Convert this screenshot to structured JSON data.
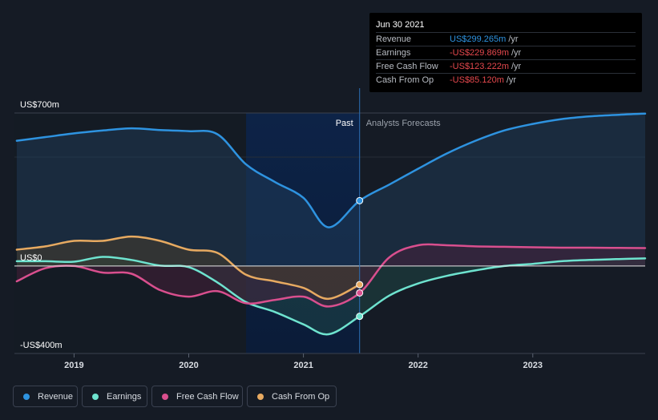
{
  "chart_data": {
    "type": "area",
    "y_ticks": [
      {
        "value": 700,
        "label": "US$700m"
      },
      {
        "value": 0,
        "label": "US$0"
      },
      {
        "value": -400,
        "label": "-US$400m"
      }
    ],
    "ylim": [
      -400,
      700
    ],
    "xlim": [
      2018.48,
      2023.98
    ],
    "x_ticks": [
      {
        "value": 2019,
        "label": "2019"
      },
      {
        "value": 2020,
        "label": "2020"
      },
      {
        "value": 2021,
        "label": "2021"
      },
      {
        "value": 2022,
        "label": "2022"
      },
      {
        "value": 2023,
        "label": "2023"
      }
    ],
    "past_label": "Past",
    "forecast_label": "Analysts Forecasts",
    "highlight_start": 2020.5,
    "divider_x": 2021.49,
    "series": [
      {
        "name": "Revenue",
        "color": "#2e93e0",
        "points": [
          [
            2018.5,
            573
          ],
          [
            2018.75,
            590
          ],
          [
            2019.0,
            607
          ],
          [
            2019.25,
            620
          ],
          [
            2019.5,
            630
          ],
          [
            2019.75,
            622
          ],
          [
            2020.0,
            617
          ],
          [
            2020.25,
            603
          ],
          [
            2020.5,
            465
          ],
          [
            2020.75,
            385
          ],
          [
            2021.0,
            312
          ],
          [
            2021.22,
            177
          ],
          [
            2021.49,
            299
          ],
          [
            2021.75,
            373
          ],
          [
            2022.0,
            445
          ],
          [
            2022.25,
            515
          ],
          [
            2022.5,
            573
          ],
          [
            2022.75,
            620
          ],
          [
            2023.0,
            650
          ],
          [
            2023.25,
            672
          ],
          [
            2023.5,
            685
          ],
          [
            2023.75,
            692
          ],
          [
            2023.98,
            697
          ]
        ]
      },
      {
        "name": "Earnings",
        "color": "#6ee3cf",
        "points": [
          [
            2018.5,
            22
          ],
          [
            2018.75,
            22
          ],
          [
            2019.0,
            20
          ],
          [
            2019.25,
            42
          ],
          [
            2019.5,
            28
          ],
          [
            2019.75,
            2
          ],
          [
            2020.0,
            -5
          ],
          [
            2020.25,
            -75
          ],
          [
            2020.5,
            -165
          ],
          [
            2020.75,
            -210
          ],
          [
            2021.0,
            -267
          ],
          [
            2021.22,
            -312
          ],
          [
            2021.49,
            -230
          ],
          [
            2021.75,
            -135
          ],
          [
            2022.0,
            -80
          ],
          [
            2022.25,
            -45
          ],
          [
            2022.5,
            -20
          ],
          [
            2022.75,
            0
          ],
          [
            2023.0,
            10
          ],
          [
            2023.25,
            22
          ],
          [
            2023.5,
            28
          ],
          [
            2023.75,
            32
          ],
          [
            2023.98,
            35
          ]
        ]
      },
      {
        "name": "Free Cash Flow",
        "color": "#d94f8e",
        "points": [
          [
            2018.5,
            -70
          ],
          [
            2018.75,
            -10
          ],
          [
            2019.0,
            0
          ],
          [
            2019.25,
            -30
          ],
          [
            2019.5,
            -35
          ],
          [
            2019.75,
            -110
          ],
          [
            2020.0,
            -140
          ],
          [
            2020.25,
            -115
          ],
          [
            2020.5,
            -170
          ],
          [
            2020.75,
            -155
          ],
          [
            2021.0,
            -140
          ],
          [
            2021.22,
            -185
          ],
          [
            2021.49,
            -123
          ],
          [
            2021.75,
            40
          ],
          [
            2022.0,
            95
          ],
          [
            2022.25,
            95
          ],
          [
            2022.5,
            90
          ],
          [
            2022.75,
            88
          ],
          [
            2023.0,
            86
          ],
          [
            2023.25,
            84
          ],
          [
            2023.5,
            84
          ],
          [
            2023.75,
            83
          ],
          [
            2023.98,
            82
          ]
        ]
      },
      {
        "name": "Cash From Op",
        "color": "#e7aa61",
        "points": [
          [
            2018.5,
            75
          ],
          [
            2018.75,
            90
          ],
          [
            2019.0,
            115
          ],
          [
            2019.25,
            115
          ],
          [
            2019.5,
            135
          ],
          [
            2019.75,
            115
          ],
          [
            2020.0,
            75
          ],
          [
            2020.25,
            60
          ],
          [
            2020.5,
            -40
          ],
          [
            2020.75,
            -70
          ],
          [
            2021.0,
            -100
          ],
          [
            2021.22,
            -150
          ],
          [
            2021.49,
            -85
          ]
        ]
      }
    ]
  },
  "tooltip": {
    "date": "Jun 30 2021",
    "rows": [
      {
        "label": "Revenue",
        "value": "US$299.265m",
        "unit": "/yr",
        "color": "#2e93e0"
      },
      {
        "label": "Earnings",
        "value": "-US$229.869m",
        "unit": "/yr",
        "color": "#e5484d"
      },
      {
        "label": "Free Cash Flow",
        "value": "-US$123.222m",
        "unit": "/yr",
        "color": "#e5484d"
      },
      {
        "label": "Cash From Op",
        "value": "-US$85.120m",
        "unit": "/yr",
        "color": "#e5484d"
      }
    ]
  },
  "legend": [
    {
      "label": "Revenue",
      "color": "#2e93e0"
    },
    {
      "label": "Earnings",
      "color": "#6ee3cf"
    },
    {
      "label": "Free Cash Flow",
      "color": "#d94f8e"
    },
    {
      "label": "Cash From Op",
      "color": "#e7aa61"
    }
  ]
}
